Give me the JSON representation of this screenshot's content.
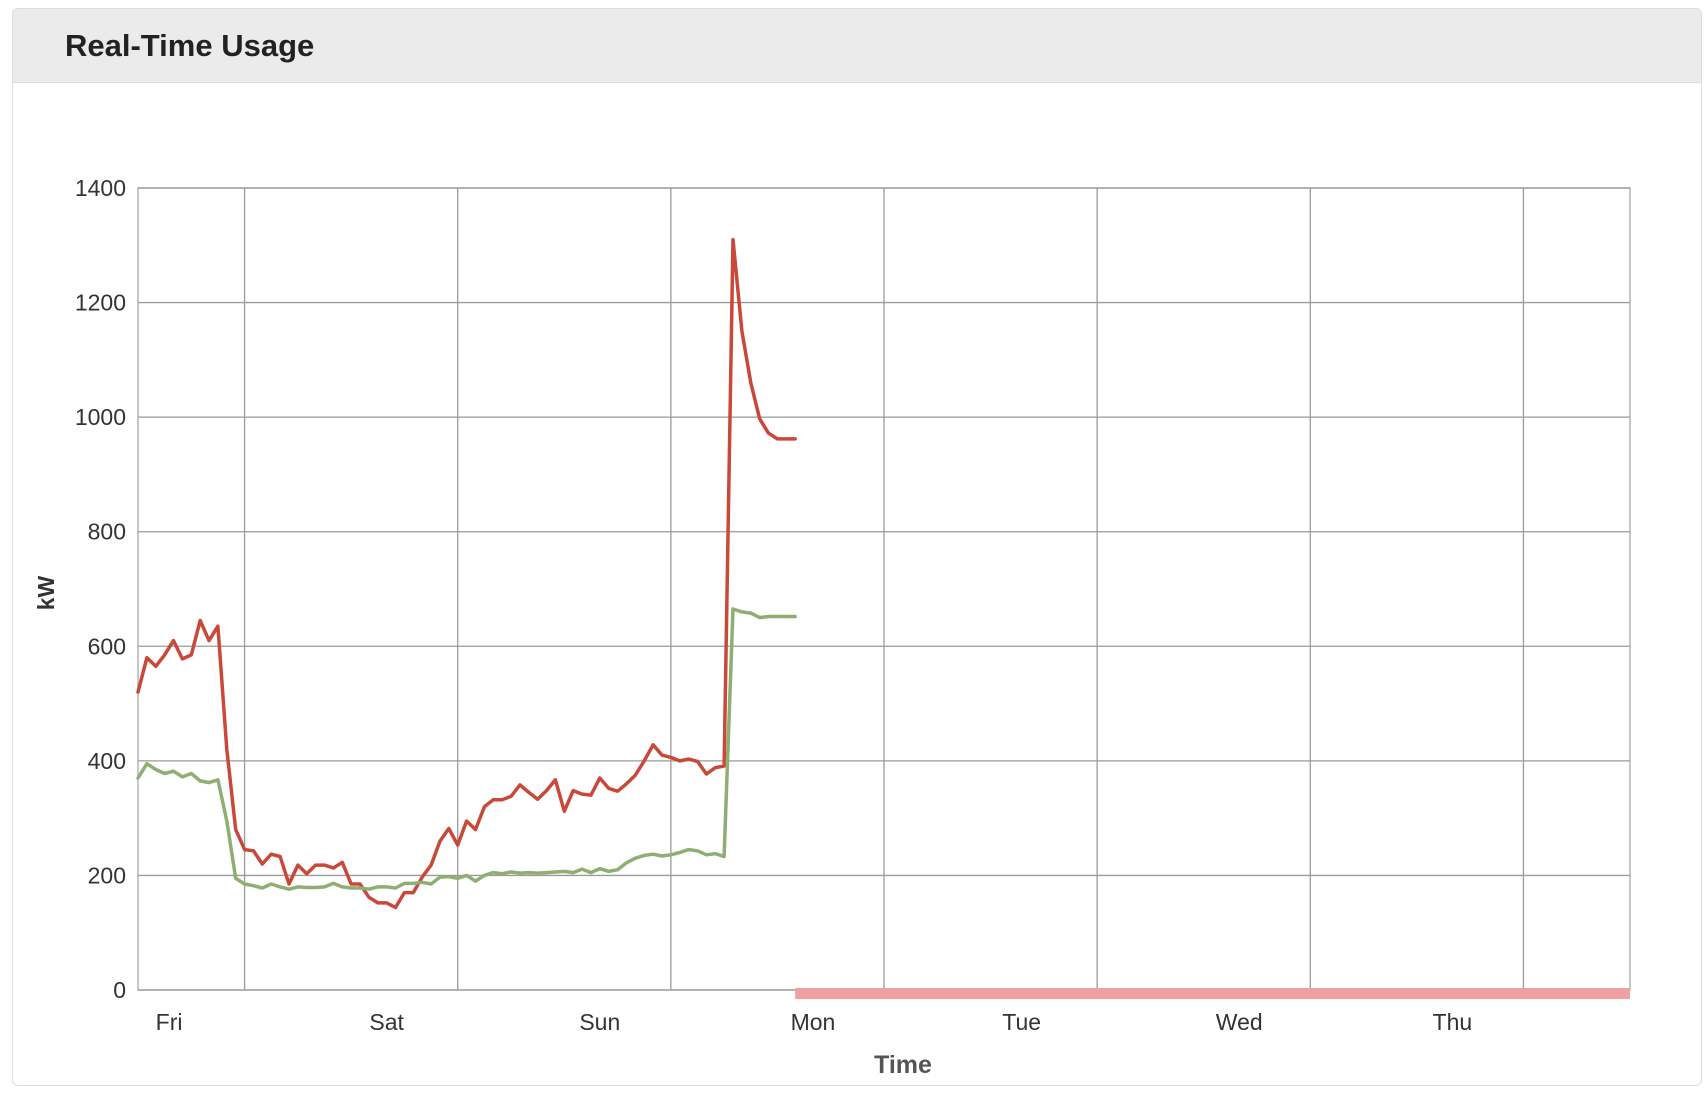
{
  "panel": {
    "title": "Real-Time Usage"
  },
  "chart_data": {
    "type": "line",
    "xlabel": "Time",
    "ylabel": "kW",
    "ylim": [
      0,
      1400
    ],
    "y_ticks": [
      0,
      200,
      400,
      600,
      800,
      1000,
      1200,
      1400
    ],
    "x_day_labels": [
      "Fri",
      "Sat",
      "Sun",
      "Mon",
      "Tue",
      "Wed",
      "Thu"
    ],
    "x_range_hours": [
      0,
      168
    ],
    "grid": true,
    "legend": "none",
    "colors": {
      "series_red": "#c8483a",
      "series_green": "#8fae72",
      "gap_bar": "#f0a0a0",
      "grid": "#9a9a9a"
    },
    "gap_indicator": {
      "from_hour": 74,
      "to_hour": 168,
      "label": ""
    },
    "series": [
      {
        "color": "#c8483a",
        "x": [
          0,
          1,
          2,
          3,
          4,
          5,
          6,
          7,
          8,
          9,
          10,
          11,
          12,
          13,
          14,
          15,
          16,
          17,
          18,
          19,
          20,
          21,
          22,
          23,
          24,
          25,
          26,
          27,
          28,
          29,
          30,
          31,
          32,
          33,
          34,
          35,
          36,
          37,
          38,
          39,
          40,
          41,
          42,
          43,
          44,
          45,
          46,
          47,
          48,
          49,
          50,
          51,
          52,
          53,
          54,
          55,
          56,
          57,
          58,
          59,
          60,
          61,
          62,
          63,
          64,
          65,
          66,
          67,
          68,
          69,
          70,
          71,
          72,
          73,
          74
        ],
        "y": [
          520,
          580,
          565,
          585,
          610,
          578,
          585,
          645,
          610,
          635,
          420,
          280,
          245,
          243,
          220,
          237,
          233,
          185,
          218,
          203,
          218,
          218,
          213,
          223,
          185,
          185,
          162,
          152,
          152,
          144,
          170,
          170,
          197,
          218,
          260,
          282,
          253,
          295,
          280,
          320,
          332,
          332,
          338,
          358,
          345,
          333,
          348,
          367,
          312,
          348,
          342,
          340,
          370,
          352,
          347,
          360,
          375,
          400,
          428,
          410,
          406,
          400,
          403,
          399,
          377,
          388,
          391,
          1310,
          1150,
          1060,
          997,
          972,
          962,
          962,
          962
        ]
      },
      {
        "color": "#8fae72",
        "x": [
          0,
          1,
          2,
          3,
          4,
          5,
          6,
          7,
          8,
          9,
          10,
          11,
          12,
          13,
          14,
          15,
          16,
          17,
          18,
          19,
          20,
          21,
          22,
          23,
          24,
          25,
          26,
          27,
          28,
          29,
          30,
          31,
          32,
          33,
          34,
          35,
          36,
          37,
          38,
          39,
          40,
          41,
          42,
          43,
          44,
          45,
          46,
          47,
          48,
          49,
          50,
          51,
          52,
          53,
          54,
          55,
          56,
          57,
          58,
          59,
          60,
          61,
          62,
          63,
          64,
          65,
          66,
          67,
          68,
          69,
          70,
          71,
          72,
          73,
          74
        ],
        "y": [
          370,
          395,
          385,
          378,
          382,
          372,
          378,
          365,
          362,
          367,
          295,
          195,
          185,
          182,
          178,
          185,
          180,
          176,
          180,
          179,
          179,
          180,
          186,
          180,
          178,
          178,
          176,
          180,
          180,
          178,
          186,
          186,
          188,
          185,
          197,
          198,
          195,
          200,
          190,
          200,
          205,
          203,
          206,
          204,
          205,
          204,
          205,
          206,
          207,
          205,
          211,
          205,
          212,
          207,
          210,
          222,
          230,
          235,
          237,
          234,
          236,
          240,
          245,
          243,
          236,
          238,
          233,
          665,
          660,
          658,
          650,
          652,
          652,
          652,
          652
        ]
      }
    ]
  }
}
